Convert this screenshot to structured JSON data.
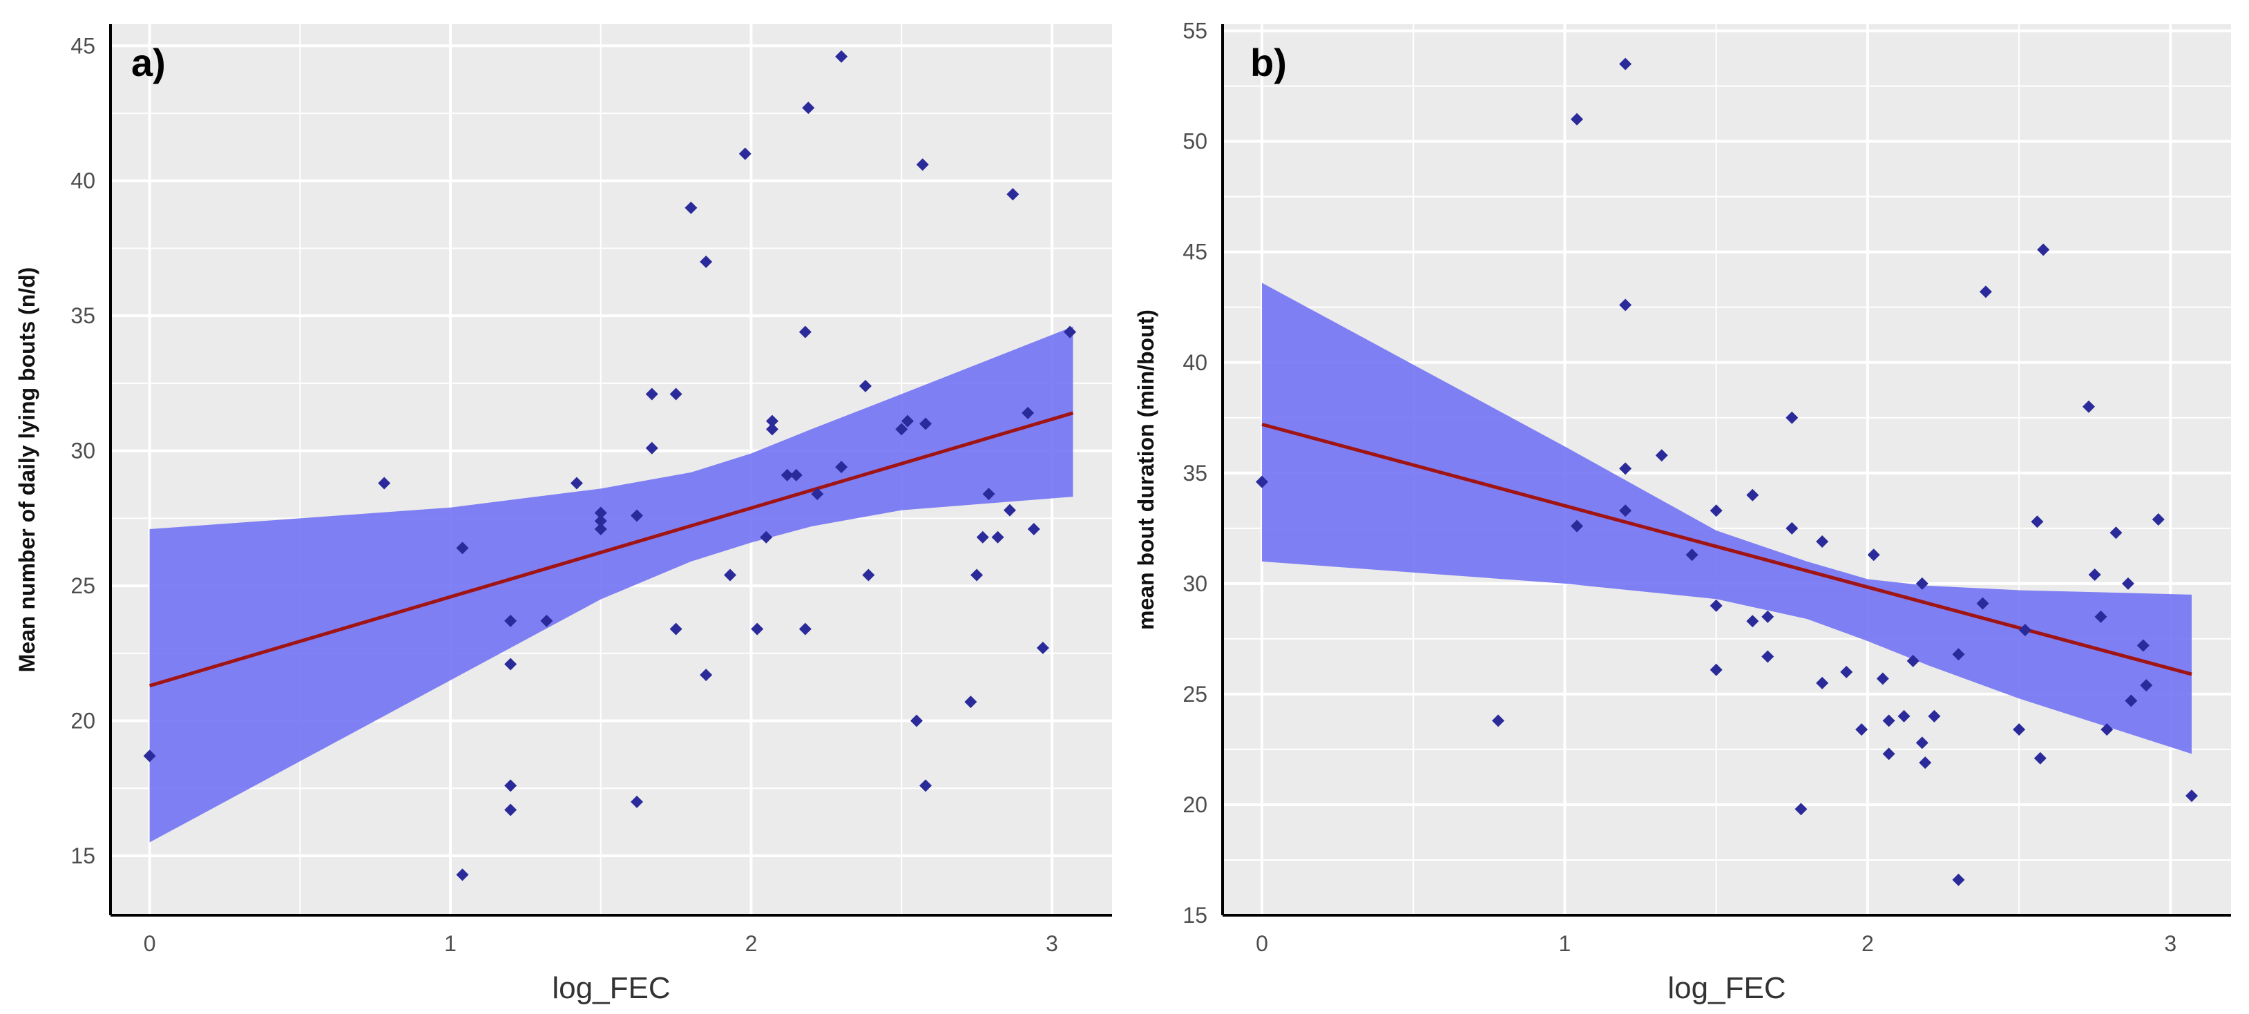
{
  "chart_data": [
    {
      "type": "scatter",
      "panel_label": "a)",
      "title": "",
      "xlabel": "log_FEC",
      "ylabel": "Mean number of daily lying bouts (n/d)",
      "xlim": [
        -0.13,
        3.2
      ],
      "ylim": [
        12.8,
        45.8
      ],
      "xticks": [
        0,
        1,
        2,
        3
      ],
      "yticks": [
        15,
        20,
        25,
        30,
        35,
        40,
        45
      ],
      "grid": true,
      "colors": {
        "points": "#2a2a9a",
        "line": "#a01414",
        "band": "#6f6ff5",
        "panel_bg": "#ebebeb",
        "grid": "#ffffff"
      },
      "regression": {
        "x": [
          0,
          3.07
        ],
        "y": [
          21.3,
          31.4
        ]
      },
      "confidence_band": {
        "x": [
          0,
          0.5,
          1,
          1.5,
          1.8,
          2.0,
          2.2,
          2.5,
          3.07
        ],
        "lower": [
          15.5,
          18.5,
          21.5,
          24.5,
          25.9,
          26.6,
          27.2,
          27.8,
          28.3
        ],
        "upper": [
          27.1,
          27.5,
          27.9,
          28.6,
          29.2,
          29.9,
          30.8,
          32.1,
          34.6
        ]
      },
      "points": {
        "x": [
          0,
          0.78,
          1.04,
          1.04,
          1.2,
          1.2,
          1.2,
          1.2,
          1.32,
          1.42,
          1.5,
          1.5,
          1.5,
          1.62,
          1.62,
          1.67,
          1.67,
          1.75,
          1.75,
          1.8,
          1.85,
          1.85,
          1.93,
          1.98,
          2.02,
          2.05,
          2.07,
          2.07,
          2.12,
          2.15,
          2.18,
          2.18,
          2.19,
          2.22,
          2.3,
          2.3,
          2.38,
          2.39,
          2.5,
          2.52,
          2.55,
          2.57,
          2.58,
          2.58,
          2.73,
          2.75,
          2.77,
          2.79,
          2.82,
          2.86,
          2.87,
          2.92,
          2.94,
          2.97,
          3.06
        ],
        "y": [
          18.7,
          28.8,
          26.4,
          14.3,
          23.7,
          22.1,
          17.6,
          16.7,
          23.7,
          28.8,
          27.7,
          27.4,
          27.1,
          27.6,
          17.0,
          32.1,
          30.1,
          32.1,
          23.4,
          39.0,
          37.0,
          21.7,
          25.4,
          41.0,
          23.4,
          26.8,
          31.1,
          30.8,
          29.1,
          29.1,
          34.4,
          23.4,
          42.7,
          28.4,
          44.6,
          29.4,
          32.4,
          25.4,
          30.8,
          31.1,
          20.0,
          40.6,
          17.6,
          31.0,
          20.7,
          25.4,
          26.8,
          28.4,
          26.8,
          27.8,
          39.5,
          31.4,
          27.1,
          22.7,
          34.4
        ]
      }
    },
    {
      "type": "scatter",
      "panel_label": "b)",
      "title": "",
      "xlabel": "log_FEC",
      "ylabel": "mean bout duration (min/bout)",
      "xlim": [
        -0.13,
        3.2
      ],
      "ylim": [
        15,
        55.3
      ],
      "xticks": [
        0,
        1,
        2,
        3
      ],
      "yticks": [
        15,
        20,
        25,
        30,
        35,
        40,
        45,
        50,
        55
      ],
      "grid": true,
      "colors": {
        "points": "#2a2a9a",
        "line": "#a01414",
        "band": "#6f6ff5",
        "panel_bg": "#ebebeb",
        "grid": "#ffffff"
      },
      "regression": {
        "x": [
          0,
          3.07
        ],
        "y": [
          37.2,
          25.9
        ]
      },
      "confidence_band": {
        "x": [
          0,
          0.5,
          1,
          1.5,
          1.8,
          2.0,
          2.2,
          2.5,
          3.07
        ],
        "lower": [
          31.0,
          30.5,
          30.0,
          29.3,
          28.4,
          27.4,
          26.3,
          24.8,
          22.3
        ],
        "upper": [
          43.6,
          39.9,
          36.2,
          32.4,
          31.0,
          30.2,
          29.9,
          29.7,
          29.5
        ]
      },
      "points": {
        "x": [
          0,
          0.78,
          1.04,
          1.04,
          1.2,
          1.2,
          1.2,
          1.2,
          1.32,
          1.42,
          1.5,
          1.5,
          1.5,
          1.62,
          1.62,
          1.67,
          1.67,
          1.75,
          1.75,
          1.78,
          1.85,
          1.85,
          1.93,
          1.98,
          2.02,
          2.05,
          2.07,
          2.07,
          2.12,
          2.15,
          2.18,
          2.18,
          2.19,
          2.22,
          2.3,
          2.3,
          2.38,
          2.39,
          2.5,
          2.52,
          2.56,
          2.57,
          2.58,
          2.73,
          2.75,
          2.77,
          2.79,
          2.82,
          2.86,
          2.87,
          2.91,
          2.92,
          2.96,
          3.07
        ],
        "y": [
          34.6,
          23.8,
          51.0,
          32.6,
          53.5,
          42.6,
          35.2,
          33.3,
          35.8,
          31.3,
          33.3,
          29.0,
          26.1,
          34.0,
          28.3,
          28.5,
          26.7,
          37.5,
          32.5,
          19.8,
          31.9,
          25.5,
          26.0,
          23.4,
          31.3,
          25.7,
          23.8,
          22.3,
          24.0,
          26.5,
          30.0,
          22.8,
          21.9,
          24.0,
          26.8,
          16.6,
          29.1,
          43.2,
          23.4,
          27.9,
          32.8,
          22.1,
          45.1,
          38.0,
          30.4,
          28.5,
          23.4,
          32.3,
          30.0,
          24.7,
          27.2,
          25.4,
          32.9,
          20.4
        ]
      }
    }
  ]
}
